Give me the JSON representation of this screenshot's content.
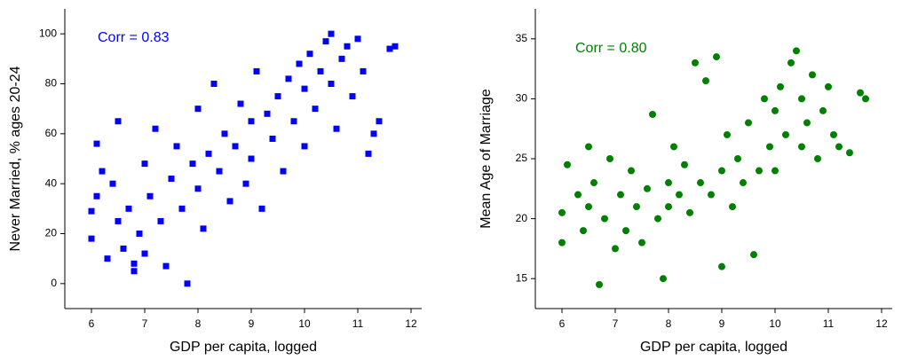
{
  "chart_data": [
    {
      "type": "scatter",
      "annotation": "Corr = 0.83",
      "x_label": "GDP per capita, logged",
      "y_label": "Never Married, % ages 20-24",
      "color": "#0000ff",
      "marker": "square",
      "xlim": [
        5.5,
        12.2
      ],
      "ylim": [
        -10,
        110
      ],
      "xticks": [
        6,
        7,
        8,
        9,
        10,
        11,
        12
      ],
      "yticks": [
        0,
        20,
        40,
        60,
        80,
        100
      ],
      "x": [
        6.0,
        6.0,
        6.1,
        6.1,
        6.2,
        6.3,
        6.4,
        6.5,
        6.5,
        6.6,
        6.7,
        6.8,
        6.8,
        6.9,
        7.0,
        7.0,
        7.1,
        7.2,
        7.3,
        7.4,
        7.5,
        7.6,
        7.7,
        7.8,
        7.9,
        8.0,
        8.0,
        8.1,
        8.2,
        8.3,
        8.4,
        8.5,
        8.6,
        8.7,
        8.8,
        8.9,
        9.0,
        9.0,
        9.1,
        9.2,
        9.3,
        9.4,
        9.5,
        9.6,
        9.7,
        9.8,
        9.9,
        10.0,
        10.0,
        10.1,
        10.2,
        10.3,
        10.4,
        10.5,
        10.5,
        10.6,
        10.7,
        10.8,
        10.9,
        11.0,
        11.1,
        11.2,
        11.3,
        11.4,
        11.6,
        11.7
      ],
      "values": [
        18,
        29,
        56,
        35,
        45,
        10,
        40,
        25,
        65,
        14,
        30,
        8,
        5,
        20,
        48,
        12,
        35,
        62,
        25,
        7,
        42,
        55,
        30,
        0,
        48,
        70,
        38,
        22,
        52,
        80,
        45,
        60,
        33,
        55,
        72,
        40,
        65,
        50,
        85,
        30,
        68,
        58,
        75,
        45,
        82,
        65,
        88,
        78,
        55,
        92,
        70,
        85,
        97,
        100,
        80,
        62,
        90,
        95,
        75,
        98,
        85,
        52,
        60,
        65,
        94,
        95
      ]
    },
    {
      "type": "scatter",
      "annotation": "Corr = 0.80",
      "x_label": "GDP per capita, logged",
      "y_label": "Mean Age of Marriage",
      "color": "#008000",
      "marker": "circle",
      "xlim": [
        5.5,
        12.2
      ],
      "ylim": [
        12.5,
        37.5
      ],
      "xticks": [
        6,
        7,
        8,
        9,
        10,
        11,
        12
      ],
      "yticks": [
        15,
        20,
        25,
        30,
        35
      ],
      "x": [
        6.0,
        6.0,
        6.1,
        6.3,
        6.4,
        6.5,
        6.5,
        6.6,
        6.7,
        6.8,
        6.9,
        7.0,
        7.1,
        7.2,
        7.3,
        7.4,
        7.5,
        7.6,
        7.7,
        7.8,
        7.9,
        8.0,
        8.0,
        8.1,
        8.2,
        8.3,
        8.4,
        8.5,
        8.6,
        8.7,
        8.8,
        8.9,
        9.0,
        9.0,
        9.1,
        9.2,
        9.3,
        9.4,
        9.5,
        9.6,
        9.7,
        9.8,
        9.9,
        10.0,
        10.0,
        10.1,
        10.2,
        10.3,
        10.4,
        10.5,
        10.5,
        10.6,
        10.7,
        10.8,
        10.9,
        11.0,
        11.1,
        11.2,
        11.4,
        11.6,
        11.7
      ],
      "values": [
        18,
        20.5,
        24.5,
        22,
        19,
        26,
        21,
        23,
        14.5,
        20,
        25,
        17.5,
        22,
        19,
        24,
        21,
        18,
        22.5,
        28.7,
        20,
        15,
        23,
        21,
        26,
        22,
        24.5,
        20.5,
        33,
        23,
        31.5,
        22,
        33.5,
        16,
        24,
        27,
        21,
        25,
        23,
        28,
        17,
        24,
        30,
        26,
        29,
        24,
        31,
        27,
        33,
        34,
        30,
        26,
        28,
        32,
        25,
        29,
        31,
        27,
        26,
        25.5,
        30.5,
        30
      ]
    }
  ]
}
